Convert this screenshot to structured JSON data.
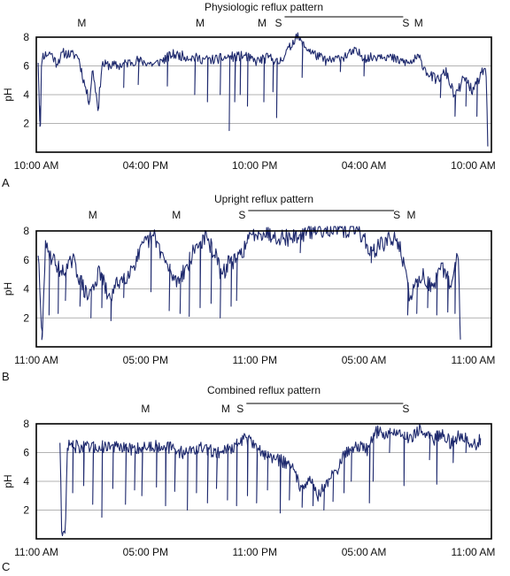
{
  "colors": {
    "trace": "#1f2a6e",
    "grid": "#9a9a9a",
    "frame": "#000000",
    "text": "#111111"
  },
  "chart_data": [
    {
      "type": "line",
      "panel_label": "A",
      "title": "Physiologic reflux pattern",
      "ylabel": "pH",
      "ylim": [
        0,
        8
      ],
      "yticks": [
        "2",
        "4",
        "6",
        "8"
      ],
      "x_range_hours": [
        0,
        25
      ],
      "x_tick_labels": [
        "10:00 AM",
        "04:00 PM",
        "10:00 PM",
        "04:00 AM",
        "10:00 AM"
      ],
      "x_tick_hours": [
        0,
        6,
        12,
        18,
        24
      ],
      "markers": [
        {
          "label": "M",
          "hour": 2.5
        },
        {
          "label": "M",
          "hour": 9.0
        },
        {
          "label": "M",
          "hour": 12.4
        },
        {
          "label": "S",
          "hour": 13.3
        },
        {
          "label": "S",
          "hour": 20.3
        },
        {
          "label": "M",
          "hour": 21.0
        }
      ],
      "supine_period_hours": [
        13.3,
        20.3
      ],
      "anchors": [
        [
          0.1,
          6.4
        ],
        [
          0.2,
          1.8
        ],
        [
          0.3,
          6.7
        ],
        [
          0.8,
          6.9
        ],
        [
          1.1,
          6.2
        ],
        [
          1.5,
          6.9
        ],
        [
          2.3,
          6.7
        ],
        [
          2.6,
          5.0
        ],
        [
          2.9,
          3.5
        ],
        [
          3.1,
          5.8
        ],
        [
          3.4,
          3.0
        ],
        [
          3.6,
          6.1
        ],
        [
          4.5,
          6.0
        ],
        [
          5.5,
          6.4
        ],
        [
          6.5,
          6.1
        ],
        [
          7.5,
          6.8
        ],
        [
          8.5,
          6.6
        ],
        [
          9.5,
          6.4
        ],
        [
          10.5,
          6.6
        ],
        [
          11.5,
          6.7
        ],
        [
          12.0,
          6.3
        ],
        [
          12.8,
          6.6
        ],
        [
          13.3,
          6.2
        ],
        [
          13.7,
          6.9
        ],
        [
          14.0,
          7.4
        ],
        [
          14.3,
          8.2
        ],
        [
          14.6,
          7.5
        ],
        [
          15.3,
          6.8
        ],
        [
          16.0,
          6.3
        ],
        [
          16.8,
          6.6
        ],
        [
          17.5,
          7.0
        ],
        [
          18.2,
          6.5
        ],
        [
          19.0,
          6.8
        ],
        [
          19.8,
          6.4
        ],
        [
          20.5,
          6.2
        ],
        [
          21.0,
          6.6
        ],
        [
          21.5,
          5.5
        ],
        [
          22.0,
          5.0
        ],
        [
          22.5,
          5.6
        ],
        [
          23.0,
          3.8
        ],
        [
          23.5,
          5.2
        ],
        [
          24.0,
          4.2
        ],
        [
          24.5,
          5.6
        ],
        [
          24.7,
          6.0
        ],
        [
          24.8,
          0.4
        ]
      ],
      "dips": [
        [
          0.2,
          1.8
        ],
        [
          3.4,
          3.0
        ],
        [
          2.9,
          3.5
        ],
        [
          4.8,
          4.5
        ],
        [
          5.6,
          4.7
        ],
        [
          7.2,
          4.6
        ],
        [
          8.7,
          4.0
        ],
        [
          9.4,
          3.5
        ],
        [
          10.1,
          4.0
        ],
        [
          10.6,
          1.5
        ],
        [
          10.9,
          3.5
        ],
        [
          11.2,
          4.0
        ],
        [
          11.6,
          3.2
        ],
        [
          12.5,
          3.5
        ],
        [
          13.2,
          2.4
        ],
        [
          13.0,
          4.2
        ],
        [
          14.6,
          5.2
        ],
        [
          16.7,
          5.6
        ],
        [
          18.0,
          5.3
        ],
        [
          22.2,
          3.8
        ],
        [
          23.0,
          2.5
        ],
        [
          23.6,
          3.2
        ],
        [
          24.2,
          2.5
        ]
      ],
      "noise_amp": 0.35,
      "seed": 11
    },
    {
      "type": "line",
      "panel_label": "B",
      "title": "Upright reflux pattern",
      "ylabel": "pH",
      "ylim": [
        0,
        8
      ],
      "yticks": [
        "2",
        "4",
        "6",
        "8"
      ],
      "x_range_hours": [
        0,
        25
      ],
      "x_tick_labels": [
        "11:00 AM",
        "05:00 PM",
        "11:00 PM",
        "05:00 AM",
        "11:00 AM"
      ],
      "x_tick_hours": [
        0,
        6,
        12,
        18,
        24
      ],
      "markers": [
        {
          "label": "M",
          "hour": 3.1
        },
        {
          "label": "M",
          "hour": 7.7
        },
        {
          "label": "S",
          "hour": 11.3
        },
        {
          "label": "S",
          "hour": 19.8
        },
        {
          "label": "M",
          "hour": 20.6
        }
      ],
      "supine_period_hours": [
        11.3,
        19.8
      ],
      "anchors": [
        [
          0.1,
          6.6
        ],
        [
          0.3,
          0.5
        ],
        [
          0.5,
          6.8
        ],
        [
          1.5,
          5.0
        ],
        [
          2.0,
          6.0
        ],
        [
          2.8,
          3.4
        ],
        [
          3.5,
          5.2
        ],
        [
          4.0,
          3.2
        ],
        [
          4.5,
          4.5
        ],
        [
          5.0,
          5.0
        ],
        [
          5.5,
          6.0
        ],
        [
          6.0,
          7.2
        ],
        [
          6.5,
          7.6
        ],
        [
          7.2,
          5.5
        ],
        [
          7.7,
          4.5
        ],
        [
          8.3,
          5.6
        ],
        [
          8.8,
          7.0
        ],
        [
          9.3,
          7.5
        ],
        [
          9.8,
          6.5
        ],
        [
          10.2,
          4.8
        ],
        [
          10.6,
          6.0
        ],
        [
          11.0,
          5.8
        ],
        [
          11.3,
          6.6
        ],
        [
          11.8,
          7.6
        ],
        [
          12.2,
          8.0
        ],
        [
          13.0,
          7.7
        ],
        [
          14.0,
          7.5
        ],
        [
          15.0,
          8.0
        ],
        [
          16.0,
          8.2
        ],
        [
          17.0,
          8.0
        ],
        [
          17.5,
          8.2
        ],
        [
          18.0,
          7.6
        ],
        [
          18.3,
          6.5
        ],
        [
          18.8,
          6.9
        ],
        [
          19.3,
          7.4
        ],
        [
          19.9,
          7.3
        ],
        [
          20.1,
          6.2
        ],
        [
          20.5,
          3.5
        ],
        [
          21.2,
          5.0
        ],
        [
          21.8,
          4.0
        ],
        [
          22.3,
          5.5
        ],
        [
          22.8,
          4.2
        ],
        [
          23.2,
          6.6
        ],
        [
          23.3,
          0.5
        ]
      ],
      "dips": [
        [
          0.3,
          0.5
        ],
        [
          0.7,
          2.2
        ],
        [
          1.2,
          2.3
        ],
        [
          1.6,
          3.2
        ],
        [
          2.4,
          2.8
        ],
        [
          3.0,
          2.0
        ],
        [
          3.6,
          2.7
        ],
        [
          4.1,
          1.8
        ],
        [
          4.8,
          3.4
        ],
        [
          6.3,
          3.8
        ],
        [
          7.3,
          2.5
        ],
        [
          7.9,
          2.3
        ],
        [
          8.4,
          2.1
        ],
        [
          9.0,
          2.7
        ],
        [
          9.6,
          3.0
        ],
        [
          10.1,
          2.0
        ],
        [
          10.7,
          2.8
        ],
        [
          11.0,
          3.2
        ],
        [
          14.5,
          6.5
        ],
        [
          18.4,
          5.8
        ],
        [
          20.4,
          2.2
        ],
        [
          20.9,
          2.3
        ],
        [
          21.5,
          2.7
        ],
        [
          22.0,
          2.2
        ],
        [
          22.6,
          2.4
        ],
        [
          23.0,
          2.3
        ]
      ],
      "noise_amp": 0.6,
      "seed": 29
    },
    {
      "type": "line",
      "panel_label": "C",
      "title": "Combined reflux pattern",
      "ylabel": "pH",
      "ylim": [
        0,
        8
      ],
      "yticks": [
        "2",
        "4",
        "6",
        "8"
      ],
      "x_range_hours": [
        0,
        25
      ],
      "x_tick_labels": [
        "11:00 AM",
        "05:00 PM",
        "11:00 PM",
        "05:00 AM",
        "11:00 AM"
      ],
      "x_tick_hours": [
        0,
        6,
        12,
        18,
        24
      ],
      "markers": [
        {
          "label": "M",
          "hour": 6.0
        },
        {
          "label": "M",
          "hour": 10.4
        },
        {
          "label": "S",
          "hour": 11.2
        },
        {
          "label": "S",
          "hour": 20.3
        }
      ],
      "supine_period_hours": [
        11.2,
        20.3
      ],
      "anchors": [
        [
          1.3,
          6.9
        ],
        [
          1.4,
          0.3
        ],
        [
          1.6,
          0.3
        ],
        [
          1.7,
          6.5
        ],
        [
          3.0,
          6.3
        ],
        [
          4.0,
          6.5
        ],
        [
          5.0,
          6.2
        ],
        [
          6.0,
          6.4
        ],
        [
          7.0,
          6.5
        ],
        [
          8.0,
          6.0
        ],
        [
          9.0,
          6.3
        ],
        [
          10.0,
          6.0
        ],
        [
          11.0,
          6.5
        ],
        [
          11.5,
          7.1
        ],
        [
          12.0,
          6.3
        ],
        [
          12.5,
          6.0
        ],
        [
          13.0,
          5.6
        ],
        [
          14.0,
          5.2
        ],
        [
          14.5,
          3.6
        ],
        [
          15.0,
          4.2
        ],
        [
          15.5,
          3.0
        ],
        [
          16.0,
          4.0
        ],
        [
          16.5,
          4.8
        ],
        [
          17.0,
          6.0
        ],
        [
          17.5,
          6.5
        ],
        [
          18.2,
          6.2
        ],
        [
          18.6,
          7.5
        ],
        [
          19.0,
          7.3
        ],
        [
          20.0,
          7.4
        ],
        [
          20.5,
          7.0
        ],
        [
          21.0,
          7.6
        ],
        [
          21.8,
          6.9
        ],
        [
          22.3,
          7.4
        ],
        [
          22.8,
          6.6
        ],
        [
          23.3,
          7.3
        ],
        [
          23.8,
          6.8
        ],
        [
          24.2,
          6.4
        ],
        [
          24.4,
          7.0
        ]
      ],
      "dips": [
        [
          2.0,
          3.2
        ],
        [
          2.6,
          3.7
        ],
        [
          3.1,
          2.4
        ],
        [
          3.6,
          1.5
        ],
        [
          4.2,
          3.5
        ],
        [
          4.9,
          2.4
        ],
        [
          5.4,
          3.4
        ],
        [
          5.8,
          3.0
        ],
        [
          6.6,
          3.6
        ],
        [
          7.1,
          2.3
        ],
        [
          7.6,
          3.3
        ],
        [
          8.3,
          2.0
        ],
        [
          8.8,
          3.2
        ],
        [
          9.4,
          2.5
        ],
        [
          9.9,
          3.5
        ],
        [
          10.5,
          2.7
        ],
        [
          11.0,
          2.3
        ],
        [
          11.6,
          3.0
        ],
        [
          12.1,
          2.5
        ],
        [
          12.7,
          3.4
        ],
        [
          13.4,
          1.8
        ],
        [
          13.9,
          2.7
        ],
        [
          14.6,
          2.2
        ],
        [
          15.2,
          2.3
        ],
        [
          15.8,
          2.0
        ],
        [
          16.3,
          2.6
        ],
        [
          16.9,
          3.2
        ],
        [
          17.3,
          4.0
        ],
        [
          18.3,
          2.5
        ],
        [
          18.5,
          4.0
        ],
        [
          19.4,
          6.0
        ],
        [
          20.2,
          3.7
        ],
        [
          21.6,
          5.5
        ],
        [
          22.0,
          3.8
        ],
        [
          22.9,
          5.3
        ],
        [
          23.6,
          6.0
        ]
      ],
      "noise_amp": 0.45,
      "seed": 47
    }
  ]
}
